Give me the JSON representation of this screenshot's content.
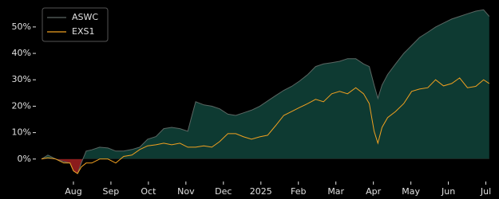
{
  "chart_data": {
    "type": "line",
    "x": [
      0.15,
      0.32,
      0.53,
      0.74,
      0.91,
      1.0,
      1.11,
      1.21,
      1.34,
      1.49,
      1.7,
      1.92,
      2.13,
      2.34,
      2.56,
      2.77,
      2.98,
      3.2,
      3.41,
      3.62,
      3.84,
      4.05,
      4.16,
      4.26,
      4.48,
      4.69,
      4.9,
      5.12,
      5.33,
      5.54,
      5.75,
      5.97,
      6.18,
      6.39,
      6.61,
      6.82,
      7.03,
      7.25,
      7.46,
      7.67,
      7.89,
      8.1,
      8.31,
      8.53,
      8.74,
      8.89,
      9.02,
      9.12,
      9.23,
      9.38,
      9.59,
      9.81,
      10.02,
      10.23,
      10.45,
      10.66,
      10.87,
      11.09,
      11.3,
      11.51,
      11.73,
      11.94,
      12.09
    ],
    "series": [
      {
        "name": "ASWC",
        "color": "#5b6763",
        "fill_positive": "#0e3a32",
        "fill_negative": "#8b1c1c",
        "values": [
          0,
          1.5,
          0,
          -1,
          -1.5,
          -4.5,
          -5.5,
          -1.5,
          3,
          3.5,
          4.5,
          4.2,
          3,
          3,
          3.6,
          4.5,
          7.5,
          8.5,
          11.5,
          12,
          11.5,
          10.5,
          16.5,
          21.7,
          20.5,
          20,
          19,
          17,
          16.5,
          17.5,
          18.5,
          20,
          22,
          24,
          26,
          27.5,
          29.5,
          32,
          35,
          36,
          36.5,
          37,
          38,
          38,
          36,
          35,
          28,
          23,
          28,
          32,
          36,
          40,
          43,
          46,
          48,
          50,
          51.5,
          53,
          54,
          55,
          56,
          56.5,
          54
        ]
      },
      {
        "name": "EXS1",
        "color": "#f0a020",
        "values": [
          0,
          0.5,
          0,
          -1.5,
          -1.5,
          -4.5,
          -5.5,
          -3,
          -1.5,
          -1.5,
          0,
          0,
          -1.5,
          1,
          1.5,
          3.6,
          5,
          5.4,
          6,
          5.4,
          6,
          4.5,
          4.5,
          4.5,
          5,
          4.5,
          6.6,
          9.6,
          9.6,
          8.4,
          7.5,
          8.4,
          9,
          12.6,
          16.5,
          18,
          19.5,
          21,
          22.6,
          21.7,
          24.7,
          25.6,
          24.7,
          27,
          24.7,
          21,
          10.5,
          6,
          12,
          15.7,
          18,
          21,
          25.6,
          26.5,
          27,
          30,
          27.7,
          28.6,
          30.7,
          27,
          27.5,
          30,
          28.6
        ]
      }
    ],
    "xlim": [
      0,
      12.18
    ],
    "xticks": [
      {
        "value": 1,
        "label": "Aug"
      },
      {
        "value": 2,
        "label": "Sep"
      },
      {
        "value": 3,
        "label": "Oct"
      },
      {
        "value": 4,
        "label": "Nov"
      },
      {
        "value": 5,
        "label": "Dec"
      },
      {
        "value": 6,
        "label": "2025"
      },
      {
        "value": 7,
        "label": "Feb"
      },
      {
        "value": 8,
        "label": "Mar"
      },
      {
        "value": 9,
        "label": "Apr"
      },
      {
        "value": 10,
        "label": "May"
      },
      {
        "value": 11,
        "label": "Jun"
      },
      {
        "value": 12,
        "label": "Jul"
      }
    ],
    "ylim": [
      -8.5,
      58.7
    ],
    "yticks": [
      {
        "value": 0,
        "label": "0%"
      },
      {
        "value": 10,
        "label": "10%"
      },
      {
        "value": 20,
        "label": "20%"
      },
      {
        "value": 30,
        "label": "30%"
      },
      {
        "value": 40,
        "label": "40%"
      },
      {
        "value": 50,
        "label": "50%"
      }
    ],
    "legend": "upper left",
    "background": "#000000"
  }
}
